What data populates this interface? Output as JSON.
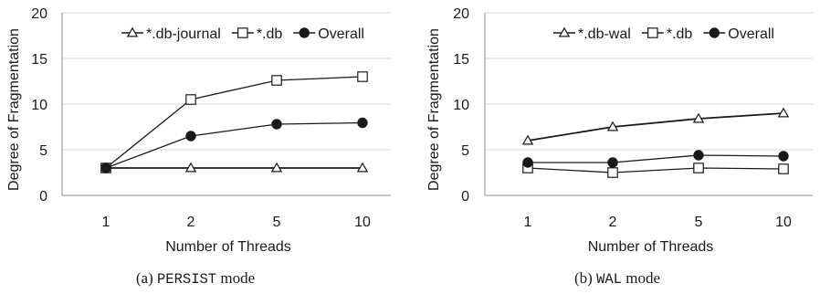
{
  "chart_data": [
    {
      "type": "line",
      "categories": [
        "1",
        "2",
        "5",
        "10"
      ],
      "ylabel": "Degree of Fragmentation",
      "xlabel": "Number of Threads",
      "ylim": [
        0,
        20
      ],
      "yticks": [
        "0",
        "5",
        "10",
        "15",
        "20"
      ],
      "grid": "horizontal",
      "legend_position": "top-right",
      "series": [
        {
          "name": "*.db-journal",
          "marker": "triangle",
          "values": [
            3,
            3,
            3,
            3
          ]
        },
        {
          "name": "*.db",
          "marker": "square",
          "values": [
            3,
            10.5,
            12.6,
            13
          ]
        },
        {
          "name": "Overall",
          "marker": "circle",
          "values": [
            3,
            6.5,
            7.8,
            7.95
          ]
        }
      ],
      "caption": {
        "prefix": "(a) ",
        "mode": "PERSIST",
        "suffix": " mode"
      }
    },
    {
      "type": "line",
      "categories": [
        "1",
        "2",
        "5",
        "10"
      ],
      "ylabel": "Degree of Fragmentation",
      "xlabel": "Number of Threads",
      "ylim": [
        0,
        20
      ],
      "yticks": [
        "0",
        "5",
        "10",
        "15",
        "20"
      ],
      "grid": "horizontal",
      "legend_position": "top-right",
      "series": [
        {
          "name": "*.db-wal",
          "marker": "triangle",
          "values": [
            6,
            7.5,
            8.4,
            9
          ]
        },
        {
          "name": "*.db",
          "marker": "square",
          "values": [
            3,
            2.5,
            3,
            2.9
          ]
        },
        {
          "name": "Overall",
          "marker": "circle",
          "values": [
            3.6,
            3.6,
            4.4,
            4.3
          ]
        }
      ],
      "caption": {
        "prefix": "(b) ",
        "mode": "WAL",
        "suffix": " mode"
      }
    }
  ],
  "colors": {
    "line": "#1a1a1a",
    "grid": "#d9d9d9",
    "axis": "#8c8c8c",
    "marker_fill_open": "#ffffff",
    "marker_fill_solid": "#1a1a1a"
  }
}
